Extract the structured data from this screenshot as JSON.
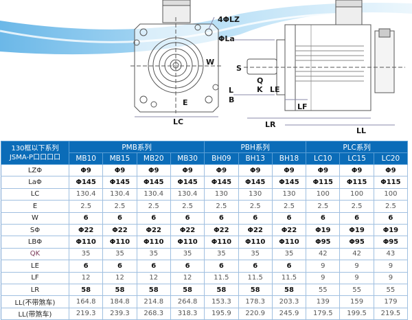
{
  "drawing": {
    "front_labels": [
      "4ΦLZ",
      "ΦLa",
      "W",
      "E",
      "LC"
    ],
    "side_labels": [
      "S",
      "L",
      "B",
      "Q",
      "K",
      "LE",
      "LF",
      "LR",
      "LL"
    ]
  },
  "table": {
    "corner": [
      "130框以下系列",
      "JSMA-P口口口口"
    ],
    "groups": [
      {
        "name": "PMB系列",
        "models": [
          "MB10",
          "MB15",
          "MB20",
          "MB30"
        ]
      },
      {
        "name": "PBH系列",
        "models": [
          "BH09",
          "BH13",
          "BH18"
        ]
      },
      {
        "name": "PLC系列",
        "models": [
          "LC10",
          "LC15",
          "LC20"
        ]
      }
    ],
    "rows": [
      {
        "label": "LZΦ",
        "values": [
          "Φ9",
          "Φ9",
          "Φ9",
          "Φ9",
          "Φ9",
          "Φ9",
          "Φ9",
          "Φ9",
          "Φ9",
          "Φ9"
        ]
      },
      {
        "label": "LaΦ",
        "values": [
          "Φ145",
          "Φ145",
          "Φ145",
          "Φ145",
          "Φ145",
          "Φ145",
          "Φ145",
          "Φ115",
          "Φ115",
          "Φ115"
        ]
      },
      {
        "label": "LC",
        "values": [
          "130.4",
          "130.4",
          "130.4",
          "130.4",
          "130",
          "130",
          "130",
          "100",
          "100",
          "100"
        ]
      },
      {
        "label": "E",
        "values": [
          "2.5",
          "2.5",
          "2.5",
          "2.5",
          "2.5",
          "2.5",
          "2.5",
          "2.5",
          "2.5",
          "2.5"
        ]
      },
      {
        "label": "W",
        "values": [
          "6",
          "6",
          "6",
          "6",
          "6",
          "6",
          "6",
          "6",
          "6",
          "6"
        ]
      },
      {
        "label": "SΦ",
        "values": [
          "Φ22",
          "Φ22",
          "Φ22",
          "Φ22",
          "Φ22",
          "Φ22",
          "Φ22",
          "Φ19",
          "Φ19",
          "Φ19"
        ]
      },
      {
        "label": "LBΦ",
        "values": [
          "Φ110",
          "Φ110",
          "Φ110",
          "Φ110",
          "Φ110",
          "Φ110",
          "Φ110",
          "Φ95",
          "Φ95",
          "Φ95"
        ]
      },
      {
        "label": "QK",
        "values": [
          "35",
          "35",
          "35",
          "35",
          "35",
          "35",
          "35",
          "42",
          "42",
          "43"
        ]
      },
      {
        "label": "LE",
        "values": [
          "6",
          "6",
          "6",
          "6",
          "6",
          "6",
          "6",
          "9",
          "9",
          "9"
        ]
      },
      {
        "label": "LF",
        "values": [
          "12",
          "12",
          "12",
          "12",
          "11.5",
          "11.5",
          "11.5",
          "9",
          "9",
          "9"
        ]
      },
      {
        "label": "LR",
        "values": [
          "58",
          "58",
          "58",
          "58",
          "58",
          "58",
          "58",
          "55",
          "55",
          "55"
        ]
      },
      {
        "label": "LL(不带煞车)",
        "values": [
          "164.8",
          "184.8",
          "214.8",
          "264.8",
          "153.3",
          "178.3",
          "203.3",
          "139",
          "159",
          "179"
        ]
      },
      {
        "label": "LL(带煞车)",
        "values": [
          "219.3",
          "239.3",
          "268.3",
          "318.3",
          "195.9",
          "220.9",
          "245.9",
          "179.5",
          "199.5",
          "219.5"
        ]
      }
    ]
  },
  "colors": {
    "header_bg": "#0b6cb8",
    "border": "#9fbfe0",
    "swoosh": "#7cc3ec"
  }
}
